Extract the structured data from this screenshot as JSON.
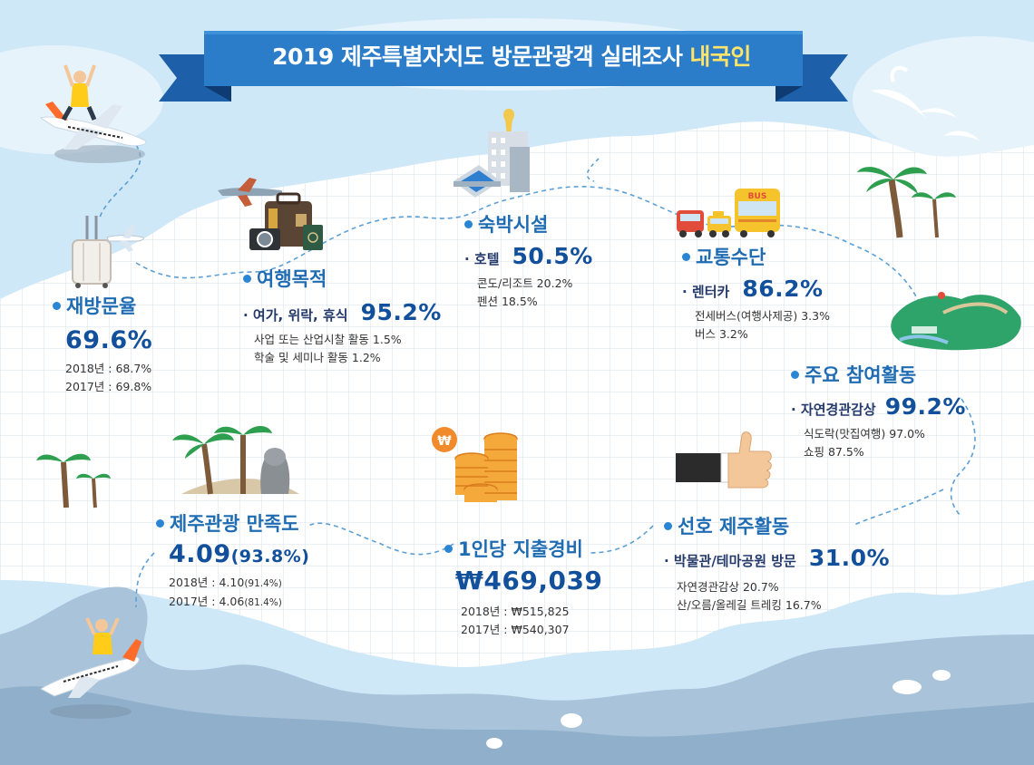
{
  "title": {
    "main": "2019 제주특별자치도 방문관광객 실태조사",
    "highlight": "내국인"
  },
  "revisit": {
    "heading": "재방문율",
    "value": "69.6%",
    "details": [
      "2018년 : 68.7%",
      "2017년 : 69.8%"
    ]
  },
  "purpose": {
    "heading": "여행목적",
    "top_label": "· 여가, 위락, 휴식",
    "top_value": "95.2%",
    "details": [
      "사업 또는 산업시찰 활동 1.5%",
      "학술 및 세미나 활동  1.2%"
    ]
  },
  "lodging": {
    "heading": "숙박시설",
    "top_label": "· 호텔",
    "top_value": "50.5%",
    "details": [
      "콘도/리조트 20.2%",
      "펜션 18.5%"
    ]
  },
  "transport": {
    "heading": "교통수단",
    "top_label": "· 렌터카",
    "top_value": "86.2%",
    "details": [
      "전세버스(여행사제공) 3.3%",
      "버스 3.2%"
    ],
    "bus_sign": "BUS"
  },
  "activities": {
    "heading": "주요 참여활동",
    "top_label": "· 자연경관감상",
    "top_value": "99.2%",
    "details": [
      "식도락(맛집여행) 97.0%",
      "쇼핑 87.5%"
    ]
  },
  "satisfaction": {
    "heading": "제주관광 만족도",
    "value": "4.09",
    "value_pct": "(93.8%)",
    "details": [
      {
        "label": "2018년 : 4.10",
        "pct": "(91.4%)"
      },
      {
        "label": "2017년 : 4.06",
        "pct": "(81.4%)"
      }
    ]
  },
  "spending": {
    "heading": "1인당 지출경비",
    "value": "₩469,039",
    "details": [
      "2018년 : ₩515,825",
      "2017년 : ₩540,307"
    ],
    "coin_symbol": "₩"
  },
  "preferred": {
    "heading": "선호 제주활동",
    "top_label": "· 박물관/테마공원 방문",
    "top_value": "31.0%",
    "details": [
      "자연경관감상 20.7%",
      "산/오름/올레길 트레킹 16.7%"
    ]
  },
  "colors": {
    "banner": "#2b7cc9",
    "banner_dark": "#144a8c",
    "heading": "#1f6cb3",
    "value": "#13509c",
    "sea": "#cfe8f8",
    "land": "#ffffff",
    "grid": "#d7e0ea",
    "coast": "#9fbad2"
  }
}
